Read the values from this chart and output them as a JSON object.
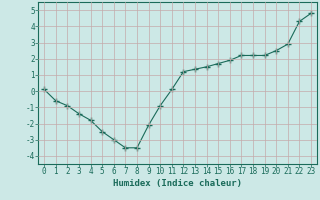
{
  "x": [
    0,
    1,
    2,
    3,
    4,
    5,
    6,
    7,
    8,
    9,
    10,
    11,
    12,
    13,
    14,
    15,
    16,
    17,
    18,
    19,
    20,
    21,
    22,
    23
  ],
  "y": [
    0.1,
    -0.6,
    -0.9,
    -1.4,
    -1.8,
    -2.5,
    -3.0,
    -3.5,
    -3.5,
    -2.1,
    -0.9,
    0.1,
    1.2,
    1.35,
    1.5,
    1.7,
    1.9,
    2.2,
    2.2,
    2.2,
    2.5,
    2.9,
    4.3,
    4.8
  ],
  "line_color": "#1a6b5a",
  "marker": "+",
  "marker_size": 4,
  "bg_color": "#cce8e6",
  "grid_color": "#c4aaaa",
  "xlabel": "Humidex (Indice chaleur)",
  "xlim": [
    -0.5,
    23.5
  ],
  "ylim": [
    -4.5,
    5.5
  ],
  "xticks": [
    0,
    1,
    2,
    3,
    4,
    5,
    6,
    7,
    8,
    9,
    10,
    11,
    12,
    13,
    14,
    15,
    16,
    17,
    18,
    19,
    20,
    21,
    22,
    23
  ],
  "yticks": [
    -4,
    -3,
    -2,
    -1,
    0,
    1,
    2,
    3,
    4,
    5
  ],
  "xlabel_fontsize": 6.5,
  "tick_fontsize": 5.5,
  "axis_color": "#1a6b5a"
}
